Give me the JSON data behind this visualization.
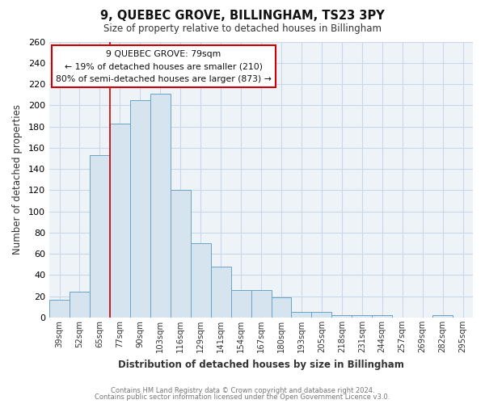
{
  "title": "9, QUEBEC GROVE, BILLINGHAM, TS23 3PY",
  "subtitle": "Size of property relative to detached houses in Billingham",
  "xlabel": "Distribution of detached houses by size in Billingham",
  "ylabel": "Number of detached properties",
  "bar_color": "#d6e4f0",
  "bar_edge_color": "#6aa3c8",
  "categories": [
    "39sqm",
    "52sqm",
    "65sqm",
    "77sqm",
    "90sqm",
    "103sqm",
    "116sqm",
    "129sqm",
    "141sqm",
    "154sqm",
    "167sqm",
    "180sqm",
    "193sqm",
    "205sqm",
    "218sqm",
    "231sqm",
    "244sqm",
    "257sqm",
    "269sqm",
    "282sqm",
    "295sqm"
  ],
  "values": [
    17,
    24,
    153,
    183,
    205,
    211,
    120,
    70,
    48,
    26,
    26,
    19,
    5,
    5,
    2,
    2,
    2,
    0,
    0,
    2,
    0
  ],
  "ylim": [
    0,
    260
  ],
  "yticks": [
    0,
    20,
    40,
    60,
    80,
    100,
    120,
    140,
    160,
    180,
    200,
    220,
    240,
    260
  ],
  "annotation_title": "9 QUEBEC GROVE: 79sqm",
  "annotation_line1": "← 19% of detached houses are smaller (210)",
  "annotation_line2": "80% of semi-detached houses are larger (873) →",
  "annotation_box_color": "#ffffff",
  "annotation_box_edge_color": "#cc0000",
  "property_line_x": 3,
  "property_line_color": "#cc0000",
  "footer_line1": "Contains HM Land Registry data © Crown copyright and database right 2024.",
  "footer_line2": "Contains public sector information licensed under the Open Government Licence v3.0.",
  "bg_color": "#ffffff",
  "plot_bg_color": "#eef3f8",
  "grid_color": "#c8d8e8"
}
